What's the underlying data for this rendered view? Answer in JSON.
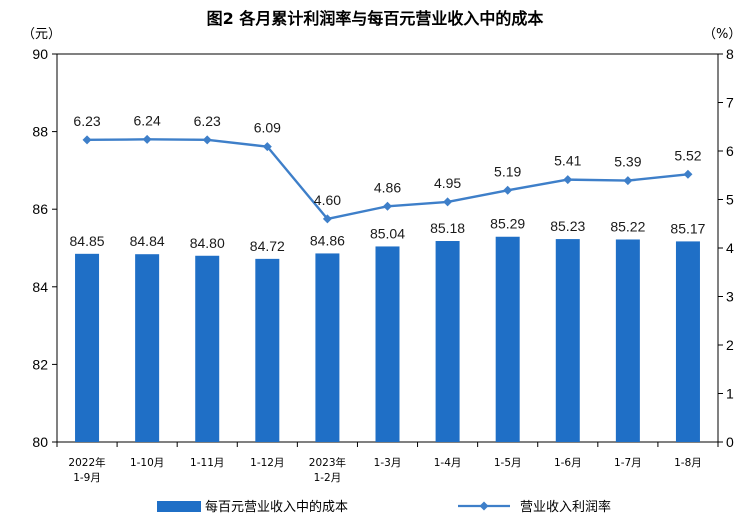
{
  "chart_data": {
    "type": "bar+line",
    "title": "图2 各月累计利润率与每百元营业收入中的成本",
    "y_left_unit": "（元）",
    "y_right_unit": "（%）",
    "categories": [
      [
        "2022年",
        "1-9月"
      ],
      [
        "1-10月"
      ],
      [
        "1-11月"
      ],
      [
        "1-12月"
      ],
      [
        "2023年",
        "1-2月"
      ],
      [
        "1-3月"
      ],
      [
        "1-4月"
      ],
      [
        "1-5月"
      ],
      [
        "1-6月"
      ],
      [
        "1-7月"
      ],
      [
        "1-8月"
      ]
    ],
    "bar_series": {
      "name": "每百元营业收入中的成本",
      "axis": "left",
      "values": [
        84.85,
        84.84,
        84.8,
        84.72,
        84.86,
        85.04,
        85.18,
        85.29,
        85.23,
        85.22,
        85.17
      ],
      "labels": [
        "84.85",
        "84.84",
        "84.80",
        "84.72",
        "84.86",
        "85.04",
        "85.18",
        "85.29",
        "85.23",
        "85.22",
        "85.17"
      ]
    },
    "line_series": {
      "name": "营业收入利润率",
      "axis": "right",
      "values": [
        6.23,
        6.24,
        6.23,
        6.09,
        4.6,
        4.86,
        4.95,
        5.19,
        5.41,
        5.39,
        5.52
      ],
      "labels": [
        "6.23",
        "6.24",
        "6.23",
        "6.09",
        "4.60",
        "4.86",
        "4.95",
        "5.19",
        "5.41",
        "5.39",
        "5.52"
      ]
    },
    "y_left": {
      "min": 80,
      "max": 90,
      "ticks": [
        "80",
        "82",
        "84",
        "86",
        "88",
        "90"
      ]
    },
    "y_right": {
      "min": 0,
      "max": 8,
      "ticks": [
        "0",
        "1",
        "2",
        "3",
        "4",
        "5",
        "6",
        "7",
        "8"
      ]
    },
    "grid": false,
    "legend_position": "bottom",
    "colors": {
      "bar": "#1f6fc6",
      "line": "#3e7fc9",
      "axis": "#000000",
      "label": "#1a1a1a"
    }
  }
}
